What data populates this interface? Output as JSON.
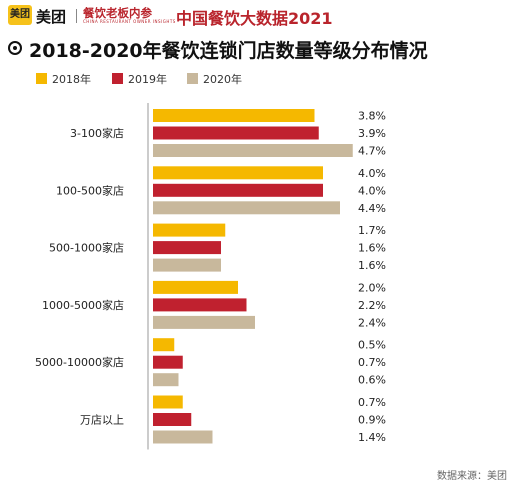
{
  "header": {
    "logo_text": "美团",
    "brand": "美团",
    "sub_brand": "餐饮老板内参",
    "sub_brand_en": "CHINA RESTAURANT OWNER INSIGHTS",
    "title": "中国餐饮大数据2021"
  },
  "source": "数据来源：美团",
  "colors": {
    "2018年": "#f5b800",
    "2019年": "#c0212f",
    "2020年": "#c8b89c"
  },
  "chart_data": {
    "type": "bar",
    "orientation": "horizontal",
    "title": "2018-2020年餐饮连锁门店数量等级分布情况",
    "categories": [
      "3-100家店",
      "100-500家店",
      "500-1000家店",
      "1000-5000家店",
      "5000-10000家店",
      "万店以上"
    ],
    "series": [
      {
        "name": "2018年",
        "values": [
          3.8,
          4.0,
          1.7,
          2.0,
          0.5,
          0.7
        ],
        "labels": [
          "3.8%",
          "4.0%",
          "1.7%",
          "2.0%",
          "0.5%",
          "0.7%"
        ]
      },
      {
        "name": "2019年",
        "values": [
          3.9,
          4.0,
          1.6,
          2.2,
          0.7,
          0.9
        ],
        "labels": [
          "3.9%",
          "4.0%",
          "1.6%",
          "2.2%",
          "0.7%",
          "0.9%"
        ]
      },
      {
        "name": "2020年",
        "values": [
          4.7,
          4.4,
          1.6,
          2.4,
          0.6,
          1.4
        ],
        "labels": [
          "4.7%",
          "4.4%",
          "1.6%",
          "2.4%",
          "0.6%",
          "1.4%"
        ]
      }
    ],
    "unit": "%",
    "xlim": [
      0,
      5
    ],
    "grid": false,
    "legend_position": "top-left"
  }
}
